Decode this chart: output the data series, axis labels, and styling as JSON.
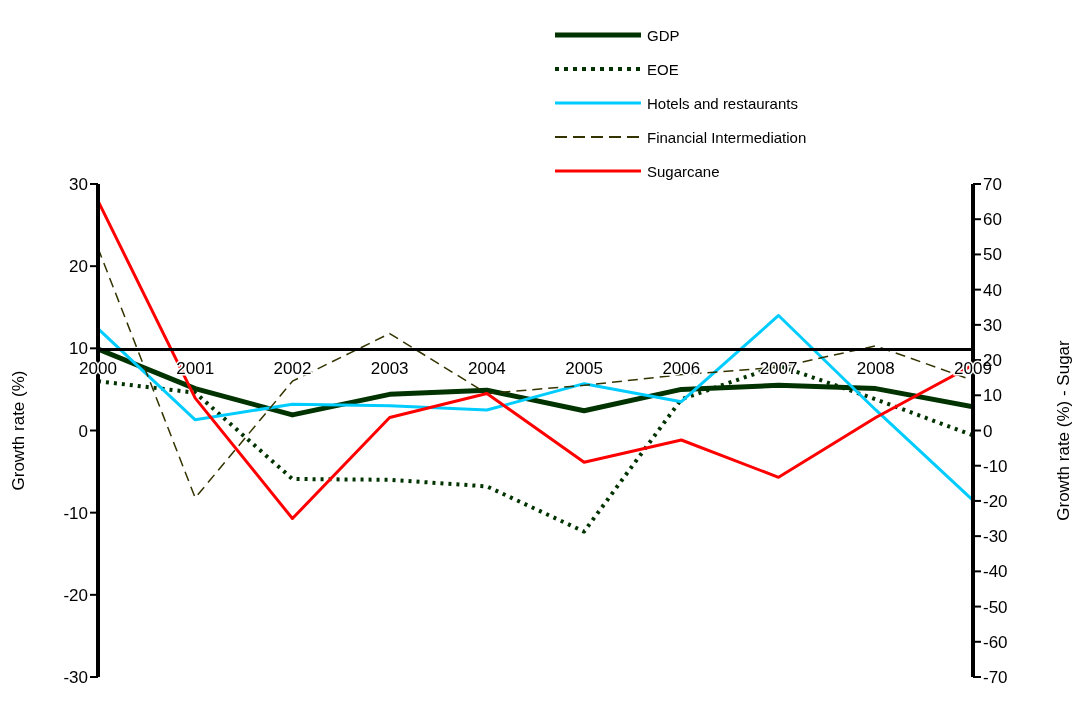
{
  "chart_data": {
    "type": "line",
    "x": [
      2000,
      2001,
      2002,
      2003,
      2004,
      2005,
      2006,
      2007,
      2008,
      2009
    ],
    "xlim": [
      2000,
      2009
    ],
    "xticks": [
      2000,
      2001,
      2002,
      2003,
      2004,
      2005,
      2006,
      2007,
      2008,
      2009
    ],
    "ylabel": "Growth rate (%)",
    "y2label": "Growth rate (%) - Sugar",
    "ylim": [
      -30,
      30
    ],
    "yticks": [
      -30,
      -20,
      -10,
      0,
      10,
      20,
      30
    ],
    "y2lim": [
      -70,
      70
    ],
    "y2ticks": [
      -70,
      -60,
      -50,
      -40,
      -30,
      -20,
      -10,
      0,
      10,
      20,
      30,
      40,
      50,
      60,
      70
    ],
    "grid": false,
    "legend": "top",
    "marker": "none",
    "series": [
      {
        "name": "GDP",
        "color": "#003300",
        "line_style": "solid",
        "values": [
          9.9,
          5.1,
          1.9,
          4.4,
          4.9,
          2.4,
          5.0,
          5.5,
          5.1,
          2.9
        ]
      },
      {
        "name": "EOE",
        "color": "#003300",
        "line_style": "dotted",
        "values": [
          6.0,
          4.6,
          -5.9,
          -6.0,
          -6.8,
          -12.3,
          3.8,
          7.9,
          3.8,
          -0.6
        ]
      },
      {
        "name": "Hotels and restaurants",
        "color": "#00ccff",
        "line_style": "solid",
        "values": [
          12.4,
          1.3,
          3.2,
          3.0,
          2.5,
          5.7,
          3.5,
          14.0,
          2.5,
          -8.5
        ]
      },
      {
        "name": "Financial Intermediation",
        "color": "#333300",
        "line_style": "dashed",
        "values": [
          22.2,
          -8.2,
          6.0,
          11.8,
          4.5,
          5.5,
          6.8,
          7.7,
          10.3,
          6.1
        ]
      },
      {
        "name": "Sugarcane",
        "color": "#ff0000",
        "line_style": "solid",
        "axis": "y2",
        "values": [
          65.2,
          9.2,
          -25.0,
          3.7,
          10.5,
          -9.0,
          -2.7,
          -13.3,
          3.7,
          18.6
        ]
      }
    ]
  }
}
